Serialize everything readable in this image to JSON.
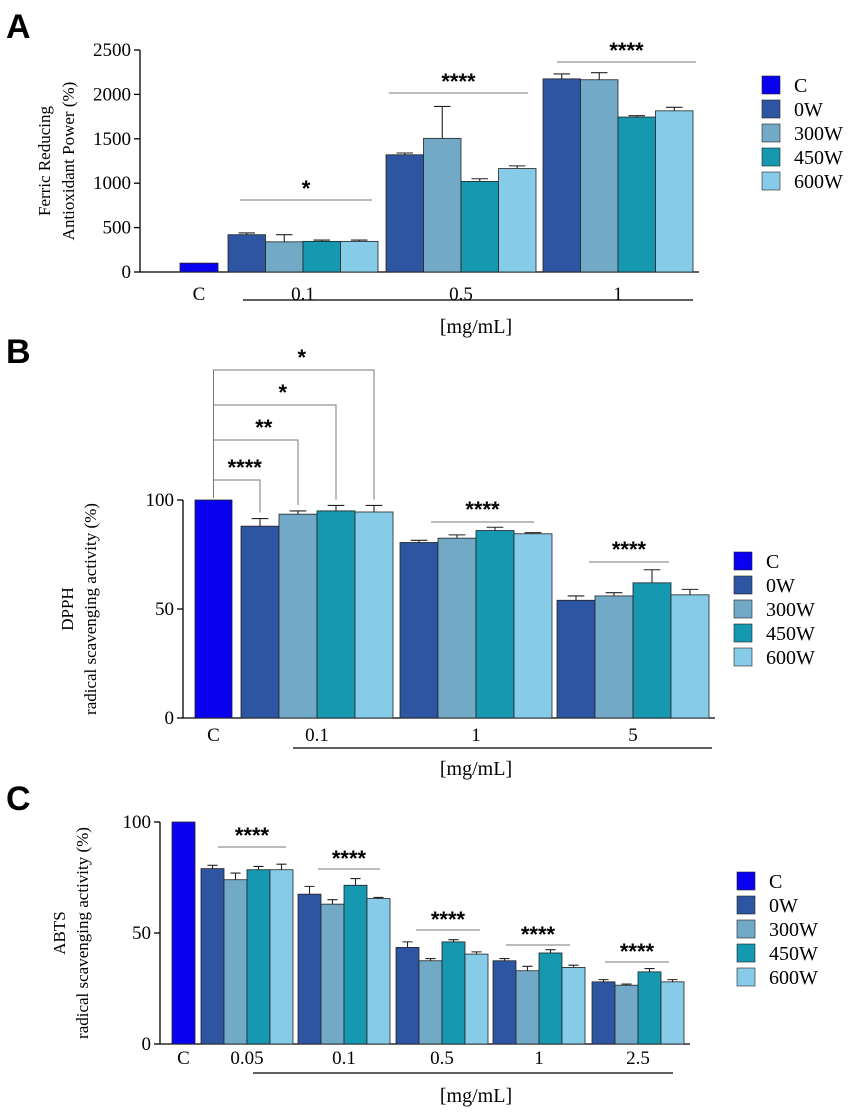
{
  "colors": {
    "C": "#0a00f0",
    "0W": "#2e55a1",
    "300W": "#72a9c7",
    "450W": "#1598b0",
    "600W": "#86cce8"
  },
  "chart_data": [
    {
      "panel": "A",
      "type": "bar",
      "ylabel": [
        "Ferric Reducing",
        "Antioxidant Power (%)"
      ],
      "xlabel": "[mg/mL]",
      "ylim": [
        0,
        2500
      ],
      "yticks": [
        "0",
        "500",
        "1000",
        "1500",
        "2000",
        "2500"
      ],
      "series_names": [
        "C",
        "0W",
        "300W",
        "450W",
        "600W"
      ],
      "legend": [
        "C",
        "0W",
        "300W",
        "450W",
        "600W"
      ],
      "groups": [
        {
          "label": "C",
          "values": [
            100
          ],
          "errors": [
            0
          ],
          "series": [
            "C"
          ]
        },
        {
          "label": "0.1",
          "values": [
            420,
            340,
            345,
            345
          ],
          "errors": [
            20,
            80,
            15,
            15
          ],
          "series": [
            "0W",
            "300W",
            "450W",
            "600W"
          ]
        },
        {
          "label": "0.5",
          "values": [
            1320,
            1505,
            1020,
            1165
          ],
          "errors": [
            20,
            360,
            30,
            30
          ],
          "series": [
            "0W",
            "300W",
            "450W",
            "600W"
          ]
        },
        {
          "label": "1",
          "values": [
            2175,
            2165,
            1745,
            1815
          ],
          "errors": [
            55,
            80,
            15,
            40
          ],
          "series": [
            "0W",
            "300W",
            "450W",
            "600W"
          ]
        }
      ],
      "significance": [
        {
          "group": 1,
          "label": "*"
        },
        {
          "group": 2,
          "label": "****"
        },
        {
          "group": 3,
          "label": "****"
        }
      ]
    },
    {
      "panel": "B",
      "type": "bar",
      "ylabel": [
        "DPPH",
        "radical scavenging activity (%)"
      ],
      "xlabel": "[mg/mL]",
      "ylim": [
        0,
        100
      ],
      "yticks": [
        "0",
        "50",
        "100"
      ],
      "series_names": [
        "C",
        "0W",
        "300W",
        "450W",
        "600W"
      ],
      "legend": [
        "C",
        "0W",
        "300W",
        "450W",
        "600W"
      ],
      "groups": [
        {
          "label": "C",
          "values": [
            100
          ],
          "errors": [
            0
          ],
          "series": [
            "C"
          ]
        },
        {
          "label": "0.1",
          "values": [
            88,
            93.5,
            95,
            94.5
          ],
          "errors": [
            3.5,
            1.5,
            2.5,
            3
          ],
          "series": [
            "0W",
            "300W",
            "450W",
            "600W"
          ]
        },
        {
          "label": "1",
          "values": [
            80.5,
            82.5,
            86,
            84.5
          ],
          "errors": [
            1,
            1.5,
            1.5,
            0.5
          ],
          "series": [
            "0W",
            "300W",
            "450W",
            "600W"
          ]
        },
        {
          "label": "5",
          "values": [
            54,
            56,
            62,
            56.5
          ],
          "errors": [
            2,
            1.5,
            6,
            2.5
          ],
          "series": [
            "0W",
            "300W",
            "450W",
            "600W"
          ]
        }
      ],
      "significance": [
        {
          "group": 2,
          "label": "****"
        },
        {
          "group": 3,
          "label": "****"
        }
      ],
      "comparisons": [
        {
          "target_bar": 0,
          "label": "****"
        },
        {
          "target_bar": 1,
          "label": "**"
        },
        {
          "target_bar": 2,
          "label": "*"
        },
        {
          "target_bar": 3,
          "label": "*"
        }
      ]
    },
    {
      "panel": "C",
      "type": "bar",
      "ylabel": [
        "ABTS",
        "radical scavenging activity (%)"
      ],
      "xlabel": "[mg/mL]",
      "ylim": [
        0,
        100
      ],
      "yticks": [
        "0",
        "50",
        "100"
      ],
      "series_names": [
        "C",
        "0W",
        "300W",
        "450W",
        "600W"
      ],
      "legend": [
        "C",
        "0W",
        "300W",
        "450W",
        "600W"
      ],
      "groups": [
        {
          "label": "C",
          "values": [
            100
          ],
          "errors": [
            0
          ],
          "series": [
            "C"
          ]
        },
        {
          "label": "0.05",
          "values": [
            79,
            74,
            78.5,
            78.5
          ],
          "errors": [
            1.5,
            3,
            1.5,
            2.5
          ],
          "series": [
            "0W",
            "300W",
            "450W",
            "600W"
          ]
        },
        {
          "label": "0.1",
          "values": [
            67.5,
            63,
            71.5,
            65.5
          ],
          "errors": [
            3.5,
            2,
            3,
            0.5
          ],
          "series": [
            "0W",
            "300W",
            "450W",
            "600W"
          ]
        },
        {
          "label": "0.5",
          "values": [
            43.5,
            37.5,
            46,
            40.5
          ],
          "errors": [
            2.5,
            1,
            1,
            1
          ],
          "series": [
            "0W",
            "300W",
            "450W",
            "600W"
          ]
        },
        {
          "label": "1",
          "values": [
            37.5,
            33,
            41,
            34.5
          ],
          "errors": [
            1,
            2,
            1.5,
            1
          ],
          "series": [
            "0W",
            "300W",
            "450W",
            "600W"
          ]
        },
        {
          "label": "2.5",
          "values": [
            28,
            26.5,
            32.5,
            28
          ],
          "errors": [
            1,
            0.5,
            1.5,
            1
          ],
          "series": [
            "0W",
            "300W",
            "450W",
            "600W"
          ]
        }
      ],
      "significance": [
        {
          "group": 1,
          "label": "****"
        },
        {
          "group": 2,
          "label": "****"
        },
        {
          "group": 3,
          "label": "****"
        },
        {
          "group": 4,
          "label": "****"
        },
        {
          "group": 5,
          "label": "****"
        }
      ]
    }
  ]
}
